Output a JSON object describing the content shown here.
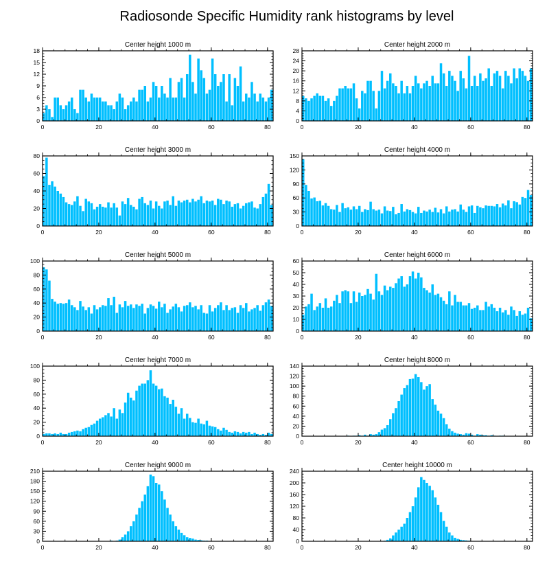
{
  "figure_title": "Radiosonde Specific Humidity rank histograms by level",
  "colors": {
    "bar": "#00bfff",
    "axis": "#000000",
    "background": "#ffffff"
  },
  "chart_data": [
    {
      "type": "bar",
      "title": "Center height 1000 m",
      "xlim": [
        0,
        82
      ],
      "xticks": [
        0,
        20,
        40,
        60,
        80
      ],
      "ylim": [
        0,
        18
      ],
      "yticks": [
        0,
        3,
        6,
        9,
        12,
        15,
        18
      ],
      "values": [
        2,
        4,
        3,
        1,
        6,
        6,
        4,
        3,
        4,
        5,
        6,
        3,
        2,
        8,
        8,
        6,
        5,
        7,
        6,
        6,
        6,
        5,
        5,
        4,
        4,
        3,
        5,
        7,
        6,
        3,
        4,
        5,
        6,
        5,
        8,
        8,
        9,
        5,
        6,
        10,
        9,
        6,
        9,
        7,
        6,
        11,
        6,
        6,
        10,
        11,
        6,
        12,
        17,
        10,
        7,
        16,
        13,
        11,
        7,
        8,
        16,
        12,
        9,
        10,
        12,
        5,
        12,
        4,
        11,
        9,
        14,
        5,
        7,
        6,
        10,
        7,
        5,
        7,
        6,
        5,
        6,
        8
      ]
    },
    {
      "type": "bar",
      "title": "Center height 2000 m",
      "xlim": [
        0,
        82
      ],
      "xticks": [
        0,
        20,
        40,
        60,
        80
      ],
      "ylim": [
        0,
        28
      ],
      "yticks": [
        0,
        4,
        8,
        12,
        16,
        20,
        24,
        28
      ],
      "values": [
        10,
        9,
        8,
        9,
        10,
        11,
        10,
        10,
        8,
        9,
        6,
        8,
        10,
        13,
        13,
        14,
        13,
        13,
        15,
        9,
        5,
        12,
        11,
        16,
        16,
        12,
        5,
        12,
        20,
        13,
        16,
        19,
        15,
        14,
        11,
        16,
        11,
        14,
        11,
        14,
        18,
        15,
        13,
        15,
        16,
        14,
        18,
        15,
        15,
        23,
        19,
        14,
        20,
        18,
        16,
        12,
        20,
        17,
        13,
        26,
        14,
        18,
        14,
        19,
        16,
        17,
        21,
        14,
        19,
        20,
        18,
        13,
        20,
        18,
        15,
        21,
        17,
        21,
        20,
        18,
        16,
        21
      ]
    },
    {
      "type": "bar",
      "title": "Center height 3000 m",
      "xlim": [
        0,
        82
      ],
      "xticks": [
        0,
        20,
        40,
        60,
        80
      ],
      "ylim": [
        0,
        80
      ],
      "yticks": [
        0,
        20,
        40,
        60,
        80
      ],
      "values": [
        57,
        78,
        47,
        51,
        45,
        40,
        37,
        33,
        27,
        25,
        24,
        28,
        34,
        23,
        17,
        31,
        28,
        26,
        19,
        22,
        25,
        22,
        21,
        27,
        21,
        26,
        21,
        12,
        28,
        25,
        32,
        24,
        22,
        19,
        31,
        33,
        26,
        24,
        29,
        20,
        28,
        23,
        20,
        28,
        29,
        24,
        34,
        23,
        29,
        27,
        29,
        30,
        27,
        31,
        28,
        30,
        34,
        26,
        29,
        28,
        29,
        24,
        31,
        30,
        25,
        29,
        28,
        22,
        25,
        26,
        20,
        23,
        26,
        27,
        28,
        21,
        20,
        25,
        33,
        37,
        48,
        24
      ]
    },
    {
      "type": "bar",
      "title": "Center height 4000 m",
      "xlim": [
        0,
        82
      ],
      "xticks": [
        0,
        20,
        40,
        60,
        80
      ],
      "ylim": [
        0,
        150
      ],
      "yticks": [
        0,
        30,
        60,
        90,
        120,
        150
      ],
      "values": [
        143,
        88,
        75,
        59,
        61,
        53,
        54,
        44,
        49,
        43,
        36,
        35,
        45,
        30,
        49,
        38,
        40,
        35,
        42,
        36,
        43,
        30,
        36,
        34,
        52,
        36,
        33,
        35,
        27,
        42,
        33,
        32,
        41,
        25,
        28,
        47,
        31,
        36,
        34,
        30,
        27,
        41,
        28,
        33,
        31,
        35,
        30,
        39,
        29,
        36,
        27,
        42,
        31,
        35,
        36,
        31,
        46,
        35,
        30,
        42,
        44,
        28,
        43,
        40,
        38,
        44,
        43,
        43,
        42,
        47,
        40,
        48,
        44,
        55,
        38,
        53,
        51,
        46,
        62,
        60,
        77,
        66
      ]
    },
    {
      "type": "bar",
      "title": "Center height 5000 m",
      "xlim": [
        0,
        82
      ],
      "xticks": [
        0,
        20,
        40,
        60,
        80
      ],
      "ylim": [
        0,
        100
      ],
      "yticks": [
        0,
        20,
        40,
        60,
        80,
        100
      ],
      "values": [
        91,
        88,
        72,
        46,
        42,
        39,
        40,
        39,
        40,
        45,
        37,
        34,
        30,
        43,
        35,
        30,
        34,
        25,
        37,
        31,
        34,
        37,
        36,
        47,
        37,
        49,
        26,
        38,
        34,
        43,
        36,
        38,
        33,
        38,
        36,
        39,
        25,
        33,
        38,
        36,
        32,
        42,
        34,
        39,
        26,
        31,
        35,
        39,
        34,
        28,
        36,
        37,
        41,
        34,
        36,
        31,
        37,
        26,
        25,
        37,
        28,
        33,
        37,
        41,
        30,
        37,
        30,
        33,
        34,
        26,
        37,
        33,
        40,
        28,
        31,
        33,
        37,
        29,
        37,
        41,
        45,
        36
      ]
    },
    {
      "type": "bar",
      "title": "Center height 6000 m",
      "xlim": [
        0,
        82
      ],
      "xticks": [
        0,
        20,
        40,
        60,
        80
      ],
      "ylim": [
        0,
        60
      ],
      "yticks": [
        0,
        10,
        20,
        30,
        40,
        50,
        60
      ],
      "values": [
        14,
        21,
        23,
        32,
        18,
        21,
        24,
        20,
        28,
        20,
        21,
        26,
        31,
        24,
        34,
        35,
        34,
        24,
        34,
        25,
        33,
        30,
        31,
        36,
        32,
        27,
        49,
        34,
        31,
        39,
        35,
        38,
        37,
        41,
        45,
        47,
        38,
        40,
        47,
        51,
        45,
        50,
        46,
        37,
        35,
        33,
        40,
        31,
        32,
        29,
        26,
        23,
        34,
        22,
        31,
        25,
        25,
        22,
        22,
        24,
        19,
        20,
        22,
        18,
        18,
        25,
        21,
        23,
        20,
        17,
        20,
        16,
        18,
        14,
        21,
        18,
        13,
        17,
        14,
        15,
        20,
        11
      ]
    },
    {
      "type": "bar",
      "title": "Center height 7000 m",
      "xlim": [
        0,
        82
      ],
      "xticks": [
        0,
        20,
        40,
        60,
        80
      ],
      "ylim": [
        0,
        100
      ],
      "yticks": [
        0,
        20,
        40,
        60,
        80,
        100
      ],
      "values": [
        3,
        4,
        4,
        3,
        4,
        3,
        5,
        3,
        3,
        5,
        6,
        7,
        8,
        7,
        10,
        12,
        13,
        16,
        18,
        22,
        25,
        27,
        30,
        33,
        28,
        40,
        25,
        38,
        33,
        48,
        62,
        55,
        51,
        65,
        72,
        75,
        75,
        80,
        94,
        75,
        72,
        67,
        68,
        57,
        55,
        46,
        52,
        42,
        32,
        40,
        25,
        32,
        26,
        20,
        19,
        25,
        18,
        17,
        22,
        15,
        14,
        13,
        10,
        8,
        12,
        9,
        6,
        5,
        7,
        6,
        4,
        6,
        5,
        6,
        3,
        5,
        3,
        2,
        3,
        2,
        5,
        3
      ]
    },
    {
      "type": "bar",
      "title": "Center height 8000 m",
      "xlim": [
        0,
        82
      ],
      "xticks": [
        0,
        20,
        40,
        60,
        80
      ],
      "ylim": [
        0,
        140
      ],
      "yticks": [
        0,
        20,
        40,
        60,
        80,
        100,
        120,
        140
      ],
      "values": [
        0,
        0,
        0,
        0,
        0,
        0,
        0,
        0,
        0,
        0,
        0,
        0,
        0,
        0,
        0,
        0,
        1,
        0,
        1,
        1,
        2,
        1,
        3,
        1,
        4,
        3,
        4,
        8,
        13,
        16,
        22,
        34,
        46,
        56,
        70,
        83,
        96,
        102,
        114,
        115,
        124,
        118,
        108,
        93,
        100,
        104,
        74,
        63,
        51,
        45,
        36,
        24,
        15,
        10,
        7,
        5,
        4,
        3,
        6,
        5,
        3,
        1,
        4,
        3,
        2,
        2,
        1,
        2,
        1,
        0,
        1,
        1,
        0,
        0,
        0,
        0,
        0,
        0,
        0,
        0,
        0,
        0
      ]
    },
    {
      "type": "bar",
      "title": "Center height 9000 m",
      "xlim": [
        0,
        82
      ],
      "xticks": [
        0,
        20,
        40,
        60,
        80
      ],
      "ylim": [
        0,
        210
      ],
      "yticks": [
        0,
        30,
        60,
        90,
        120,
        150,
        180,
        210
      ],
      "values": [
        0,
        0,
        0,
        0,
        0,
        0,
        0,
        0,
        0,
        0,
        0,
        0,
        0,
        0,
        0,
        0,
        0,
        0,
        0,
        0,
        0,
        0,
        0,
        1,
        2,
        1,
        2,
        5,
        12,
        20,
        30,
        45,
        60,
        80,
        100,
        120,
        140,
        165,
        200,
        195,
        175,
        170,
        150,
        125,
        100,
        80,
        60,
        45,
        35,
        25,
        18,
        12,
        10,
        8,
        5,
        4,
        3,
        2,
        2,
        1,
        1,
        0,
        1,
        0,
        0,
        0,
        0,
        0,
        0,
        0,
        0,
        0,
        0,
        0,
        0,
        0,
        0,
        0,
        0,
        0,
        0,
        0
      ]
    },
    {
      "type": "bar",
      "title": "Center height 10000 m",
      "xlim": [
        0,
        82
      ],
      "xticks": [
        0,
        20,
        40,
        60,
        80
      ],
      "ylim": [
        0,
        240
      ],
      "yticks": [
        0,
        40,
        80,
        120,
        160,
        200,
        240
      ],
      "values": [
        0,
        0,
        0,
        0,
        0,
        0,
        0,
        0,
        0,
        0,
        0,
        0,
        0,
        0,
        0,
        0,
        0,
        0,
        0,
        0,
        0,
        0,
        0,
        0,
        0,
        0,
        0,
        0,
        1,
        2,
        5,
        10,
        20,
        30,
        40,
        50,
        60,
        80,
        100,
        120,
        150,
        185,
        220,
        210,
        200,
        190,
        175,
        150,
        125,
        100,
        70,
        50,
        30,
        20,
        12,
        8,
        5,
        4,
        3,
        2,
        1,
        1,
        0,
        0,
        0,
        0,
        0,
        0,
        0,
        0,
        0,
        0,
        0,
        0,
        0,
        0,
        0,
        0,
        0,
        0,
        0,
        0
      ]
    }
  ]
}
